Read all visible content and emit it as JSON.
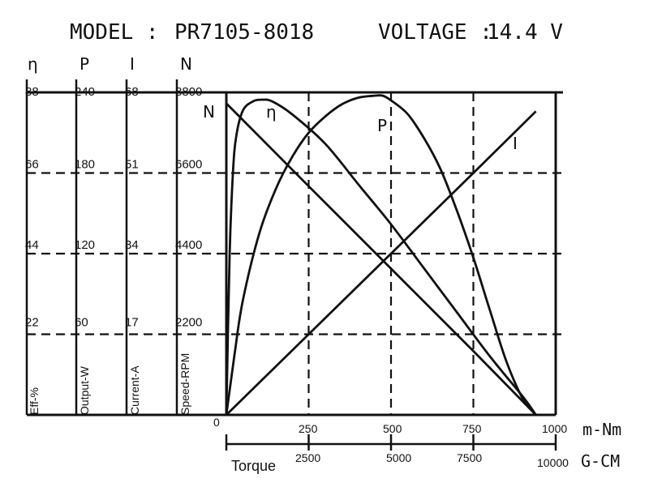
{
  "header": {
    "model_label": "MODEL :",
    "model_value": "PR7105-8018",
    "voltage_label": "VOLTAGE :",
    "voltage_value": "14.4 V"
  },
  "chart_data": {
    "type": "line",
    "x_unit_primary": "m-Nm",
    "x_unit_secondary": "G-CM",
    "x_label": "Torque",
    "x_ticks_primary": [
      "0",
      "250",
      "500",
      "750",
      "1000"
    ],
    "x_ticks_secondary": [
      "2500",
      "5000",
      "7500",
      "10000"
    ],
    "xlim": [
      0,
      1000
    ],
    "grid": "dashed",
    "axes": [
      {
        "symbol": "η",
        "name": "Eff-%",
        "max": 88,
        "ticks": [
          "22",
          "44",
          "66",
          "88"
        ]
      },
      {
        "symbol": "P",
        "name": "Output-W",
        "max": 240,
        "ticks": [
          "60",
          "120",
          "180",
          "240"
        ]
      },
      {
        "symbol": "I",
        "name": "Current-A",
        "max": 68,
        "ticks": [
          "17",
          "34",
          "51",
          "68"
        ]
      },
      {
        "symbol": "N",
        "name": "Speed-RPM",
        "max": 8800,
        "ticks": [
          "2200",
          "4400",
          "6600",
          "8800"
        ]
      }
    ],
    "series": [
      {
        "name": "N",
        "axis": "Speed-RPM",
        "points": [
          [
            0,
            8500
          ],
          [
            250,
            6240
          ],
          [
            500,
            3990
          ],
          [
            750,
            1740
          ],
          [
            940,
            0
          ]
        ]
      },
      {
        "name": "I",
        "axis": "Current-A",
        "points": [
          [
            0,
            0
          ],
          [
            250,
            17
          ],
          [
            500,
            34
          ],
          [
            750,
            51
          ],
          [
            940,
            64
          ]
        ]
      },
      {
        "name": "P",
        "axis": "Output-W",
        "points": [
          [
            0,
            0
          ],
          [
            25,
            45
          ],
          [
            50,
            85
          ],
          [
            100,
            135
          ],
          [
            150,
            168
          ],
          [
            200,
            192
          ],
          [
            250,
            210
          ],
          [
            300,
            222
          ],
          [
            350,
            231
          ],
          [
            400,
            236
          ],
          [
            450,
            237.5
          ],
          [
            475,
            237.5
          ],
          [
            500,
            234
          ],
          [
            550,
            224
          ],
          [
            600,
            206
          ],
          [
            650,
            183
          ],
          [
            700,
            152
          ],
          [
            750,
            117
          ],
          [
            800,
            78
          ],
          [
            850,
            40
          ],
          [
            900,
            12
          ],
          [
            940,
            0
          ]
        ]
      },
      {
        "name": "η",
        "axis": "Eff-%",
        "points": [
          [
            0,
            0
          ],
          [
            10,
            44
          ],
          [
            20,
            66
          ],
          [
            30,
            76
          ],
          [
            50,
            83
          ],
          [
            80,
            85.5
          ],
          [
            110,
            86
          ],
          [
            140,
            85.5
          ],
          [
            200,
            82
          ],
          [
            300,
            74
          ],
          [
            400,
            63
          ],
          [
            500,
            52
          ],
          [
            600,
            40
          ],
          [
            700,
            28
          ],
          [
            800,
            16
          ],
          [
            900,
            5
          ],
          [
            940,
            0
          ]
        ]
      }
    ]
  }
}
